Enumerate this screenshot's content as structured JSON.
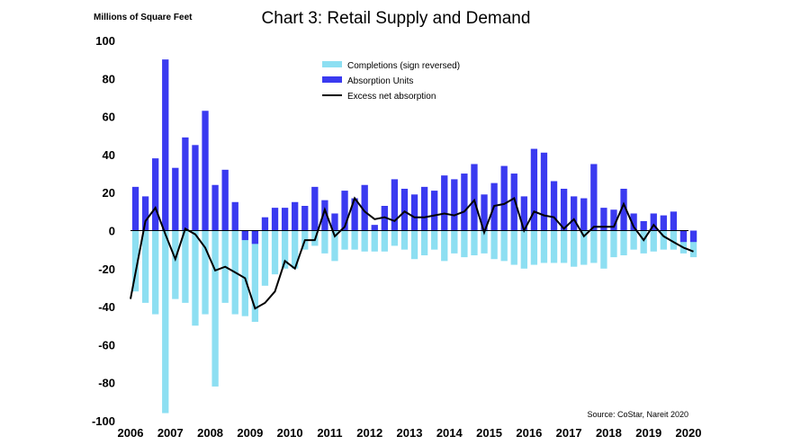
{
  "chart_data": {
    "type": "bar",
    "title": "Chart 3: Retail Supply and Demand",
    "unit_label": "Millions of Square Feet",
    "source": "Source: CoStar, Nareit 2020",
    "ylim": [
      -100,
      100
    ],
    "y_ticks": [
      100,
      80,
      60,
      40,
      20,
      0,
      -20,
      -40,
      -60,
      -80,
      -100
    ],
    "x_ticks": [
      "2006",
      "2007",
      "2008",
      "2009",
      "2010",
      "2011",
      "2012",
      "2013",
      "2014",
      "2015",
      "2016",
      "2017",
      "2018",
      "2019",
      "2020"
    ],
    "x_start": 2006,
    "colors": {
      "completions": "#8ddff2",
      "absorption": "#3a3af0",
      "excess": "#000000"
    },
    "legend": {
      "position": "top-center",
      "completions": "Completions (sign reversed)",
      "absorption": "Absorption Units",
      "excess": "Excess net absorption"
    },
    "quarters": [
      "2006Q1",
      "2006Q2",
      "2006Q3",
      "2006Q4",
      "2007Q1",
      "2007Q2",
      "2007Q3",
      "2007Q4",
      "2008Q1",
      "2008Q2",
      "2008Q3",
      "2008Q4",
      "2009Q1",
      "2009Q2",
      "2009Q3",
      "2009Q4",
      "2010Q1",
      "2010Q2",
      "2010Q3",
      "2010Q4",
      "2011Q1",
      "2011Q2",
      "2011Q3",
      "2011Q4",
      "2012Q1",
      "2012Q2",
      "2012Q3",
      "2012Q4",
      "2013Q1",
      "2013Q2",
      "2013Q3",
      "2013Q4",
      "2014Q1",
      "2014Q2",
      "2014Q3",
      "2014Q4",
      "2015Q1",
      "2015Q2",
      "2015Q3",
      "2015Q4",
      "2016Q1",
      "2016Q2",
      "2016Q3",
      "2016Q4",
      "2017Q1",
      "2017Q2",
      "2017Q3",
      "2017Q4",
      "2018Q1",
      "2018Q2",
      "2018Q3",
      "2018Q4",
      "2019Q1",
      "2019Q2",
      "2019Q3",
      "2019Q4",
      "2020Q1"
    ],
    "series": [
      {
        "name": "Completions (sign reversed)",
        "values": [
          -32,
          -38,
          -44,
          -96,
          -36,
          -38,
          -50,
          -44,
          -82,
          -38,
          -44,
          -45,
          -48,
          -29,
          -23,
          -20,
          -20,
          -10,
          -8,
          -12,
          -16,
          -10,
          -10,
          -11,
          -11,
          -11,
          -8,
          -10,
          -15,
          -13,
          -10,
          -16,
          -12,
          -14,
          -13,
          -12,
          -15,
          -16,
          -18,
          -20,
          -18,
          -17,
          -17,
          -17,
          -19,
          -18,
          -17,
          -20,
          -14,
          -13,
          -10,
          -12,
          -11,
          -10,
          -10,
          -12,
          -14
        ]
      },
      {
        "name": "Absorption Units",
        "values": [
          23,
          18,
          38,
          90,
          33,
          49,
          45,
          63,
          24,
          32,
          15,
          -5,
          -7,
          7,
          12,
          12,
          15,
          13,
          23,
          16,
          9,
          21,
          17,
          24,
          3,
          13,
          27,
          22,
          19,
          23,
          21,
          29,
          27,
          30,
          35,
          19,
          25,
          34,
          30,
          18,
          43,
          41,
          26,
          22,
          18,
          17,
          35,
          12,
          11,
          22,
          9,
          5,
          9,
          8,
          10,
          -6,
          -6
        ]
      },
      {
        "name": "Excess net absorption",
        "values": [
          -36,
          5,
          12,
          -2,
          -15,
          1,
          -2,
          -9,
          -21,
          -19,
          -22,
          -25,
          -41,
          -38,
          -32,
          -16,
          -20,
          -5,
          -5,
          11,
          -3,
          2,
          17,
          10,
          6,
          7,
          5,
          10,
          7,
          7,
          8,
          9,
          8,
          10,
          16,
          -1,
          13,
          14,
          17,
          0,
          10,
          8,
          7,
          1,
          6,
          -3,
          2,
          2,
          2,
          14,
          2,
          -5,
          3,
          -3,
          -6,
          -9,
          -11
        ]
      }
    ]
  }
}
